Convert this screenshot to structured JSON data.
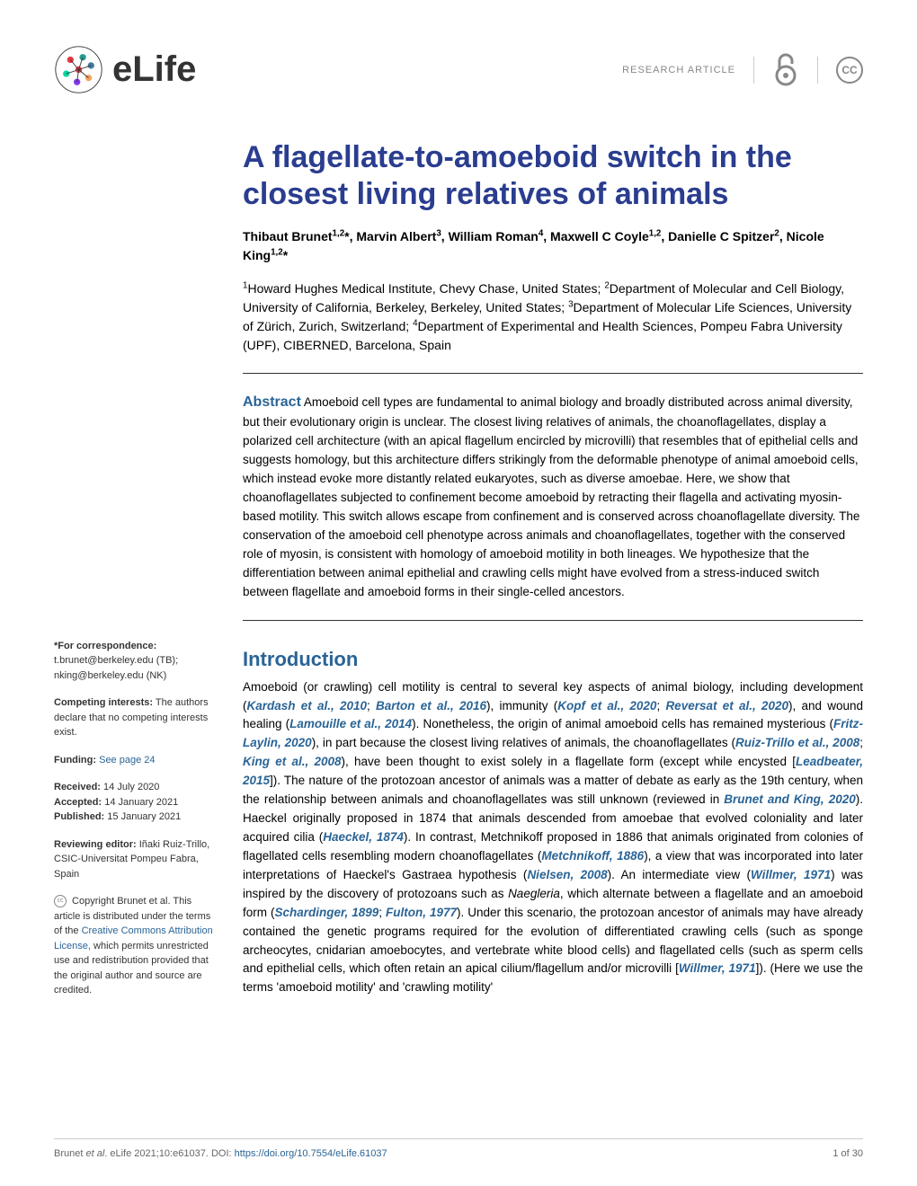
{
  "header": {
    "logo_text": "eLife",
    "article_type": "RESEARCH ARTICLE",
    "cc_label": "CC"
  },
  "title": "A flagellate-to-amoeboid switch in the closest living relatives of animals",
  "authors_html": "Thibaut Brunet<sup>1,2</sup>*, Marvin Albert<sup>3</sup>, William Roman<sup>4</sup>, Maxwell C Coyle<sup>1,2</sup>, Danielle C Spitzer<sup>2</sup>, Nicole King<sup>1,2</sup>*",
  "affiliations_html": "<sup>1</sup>Howard Hughes Medical Institute, Chevy Chase, United States; <sup>2</sup>Department of Molecular and Cell Biology, University of California, Berkeley, Berkeley, United States; <sup>3</sup>Department of Molecular Life Sciences, University of Zürich, Zurich, Switzerland; <sup>4</sup>Department of Experimental and Health Sciences, Pompeu Fabra University (UPF), CIBERNED, Barcelona, Spain",
  "abstract": {
    "label": "Abstract",
    "text": " Amoeboid cell types are fundamental to animal biology and broadly distributed across animal diversity, but their evolutionary origin is unclear. The closest living relatives of animals, the choanoflagellates, display a polarized cell architecture (with an apical flagellum encircled by microvilli) that resembles that of epithelial cells and suggests homology, but this architecture differs strikingly from the deformable phenotype of animal amoeboid cells, which instead evoke more distantly related eukaryotes, such as diverse amoebae. Here, we show that choanoflagellates subjected to confinement become amoeboid by retracting their flagella and activating myosin-based motility. This switch allows escape from confinement and is conserved across choanoflagellate diversity. The conservation of the amoeboid cell phenotype across animals and choanoflagellates, together with the conserved role of myosin, is consistent with homology of amoeboid motility in both lineages. We hypothesize that the differentiation between animal epithelial and crawling cells might have evolved from a stress-induced switch between flagellate and amoeboid forms in their single-celled ancestors."
  },
  "sidebar": {
    "correspondence_label": "*For correspondence:",
    "correspondence_1": "t.brunet@berkeley.edu (TB);",
    "correspondence_2": "nking@berkeley.edu (NK)",
    "competing_label": "Competing interests:",
    "competing_text": " The authors declare that no competing interests exist.",
    "funding_label": "Funding:",
    "funding_link": " See page 24",
    "received_label": "Received:",
    "received_date": " 14 July 2020",
    "accepted_label": "Accepted:",
    "accepted_date": " 14 January 2021",
    "published_label": "Published:",
    "published_date": " 15 January 2021",
    "editor_label": "Reviewing editor:",
    "editor_name": "  Iñaki Ruiz-Trillo, CSIC-Universitat Pompeu Fabra, Spain",
    "copyright_text": " Copyright Brunet et al. This article is distributed under the terms of the ",
    "copyright_link": "Creative Commons Attribution License,",
    "copyright_suffix": " which permits unrestricted use and redistribution provided that the original author and source are credited."
  },
  "introduction": {
    "heading": "Introduction",
    "body_html": "Amoeboid (or crawling) cell motility is central to several key aspects of animal biology, including development (<span class=\"citation\">Kardash et al., 2010</span>; <span class=\"citation\">Barton et al., 2016</span>), immunity (<span class=\"citation\">Kopf et al., 2020</span>; <span class=\"citation\">Reversat et al., 2020</span>), and wound healing (<span class=\"citation\">Lamouille et al., 2014</span>). Nonetheless, the origin of animal amoeboid cells has remained mysterious (<span class=\"citation\">Fritz-Laylin, 2020</span>), in part because the closest living relatives of animals, the choanoflagellates (<span class=\"citation\">Ruiz-Trillo et al., 2008</span>; <span class=\"citation\">King et al., 2008</span>), have been thought to exist solely in a flagellate form (except while encysted [<span class=\"citation\">Leadbeater, 2015</span>]). The nature of the protozoan ancestor of animals was a matter of debate as early as the 19th century, when the relationship between animals and choanoflagellates was still unknown (reviewed in <span class=\"citation\">Brunet and King, 2020</span>). Haeckel originally proposed in 1874 that animals descended from amoebae that evolved coloniality and later acquired cilia (<span class=\"citation\">Haeckel, 1874</span>). In contrast, Metchnikoff proposed in 1886 that animals originated from colonies of flagellated cells resembling modern choanoflagellates (<span class=\"citation\">Metchnikoff, 1886</span>), a view that was incorporated into later interpretations of Haeckel's Gastraea hypothesis (<span class=\"citation\">Nielsen, 2008</span>). An intermediate view (<span class=\"citation\">Willmer, 1971</span>) was inspired by the discovery of protozoans such as <span class=\"italic\">Naegleria</span>, which alternate between a flagellate and an amoeboid form (<span class=\"citation\">Schardinger, 1899</span>; <span class=\"citation\">Fulton, 1977</span>). Under this scenario, the protozoan ancestor of animals may have already contained the genetic programs required for the evolution of differentiated crawling cells (such as sponge archeocytes, cnidarian amoebocytes, and vertebrate white blood cells) and flagellated cells (such as sperm cells and epithelial cells, which often retain an apical cilium/flagellum and/or microvilli [<span class=\"citation\">Willmer, 1971</span>]). (Here we use the terms 'amoeboid motility' and 'crawling motility'"
  },
  "footer": {
    "citation_prefix": "Brunet ",
    "citation_etal": "et al",
    "citation_journal": ". eLife 2021;10:e61037. ",
    "doi_label": "DOI: ",
    "doi": "https://doi.org/10.7554/eLife.61037",
    "page": "1 of 30"
  },
  "colors": {
    "title_color": "#2a3d8f",
    "link_color": "#2a6496",
    "logo_colors": [
      "#e63946",
      "#2a9d8f",
      "#457b9d",
      "#f4a261",
      "#8338ec",
      "#06d6a0"
    ]
  }
}
